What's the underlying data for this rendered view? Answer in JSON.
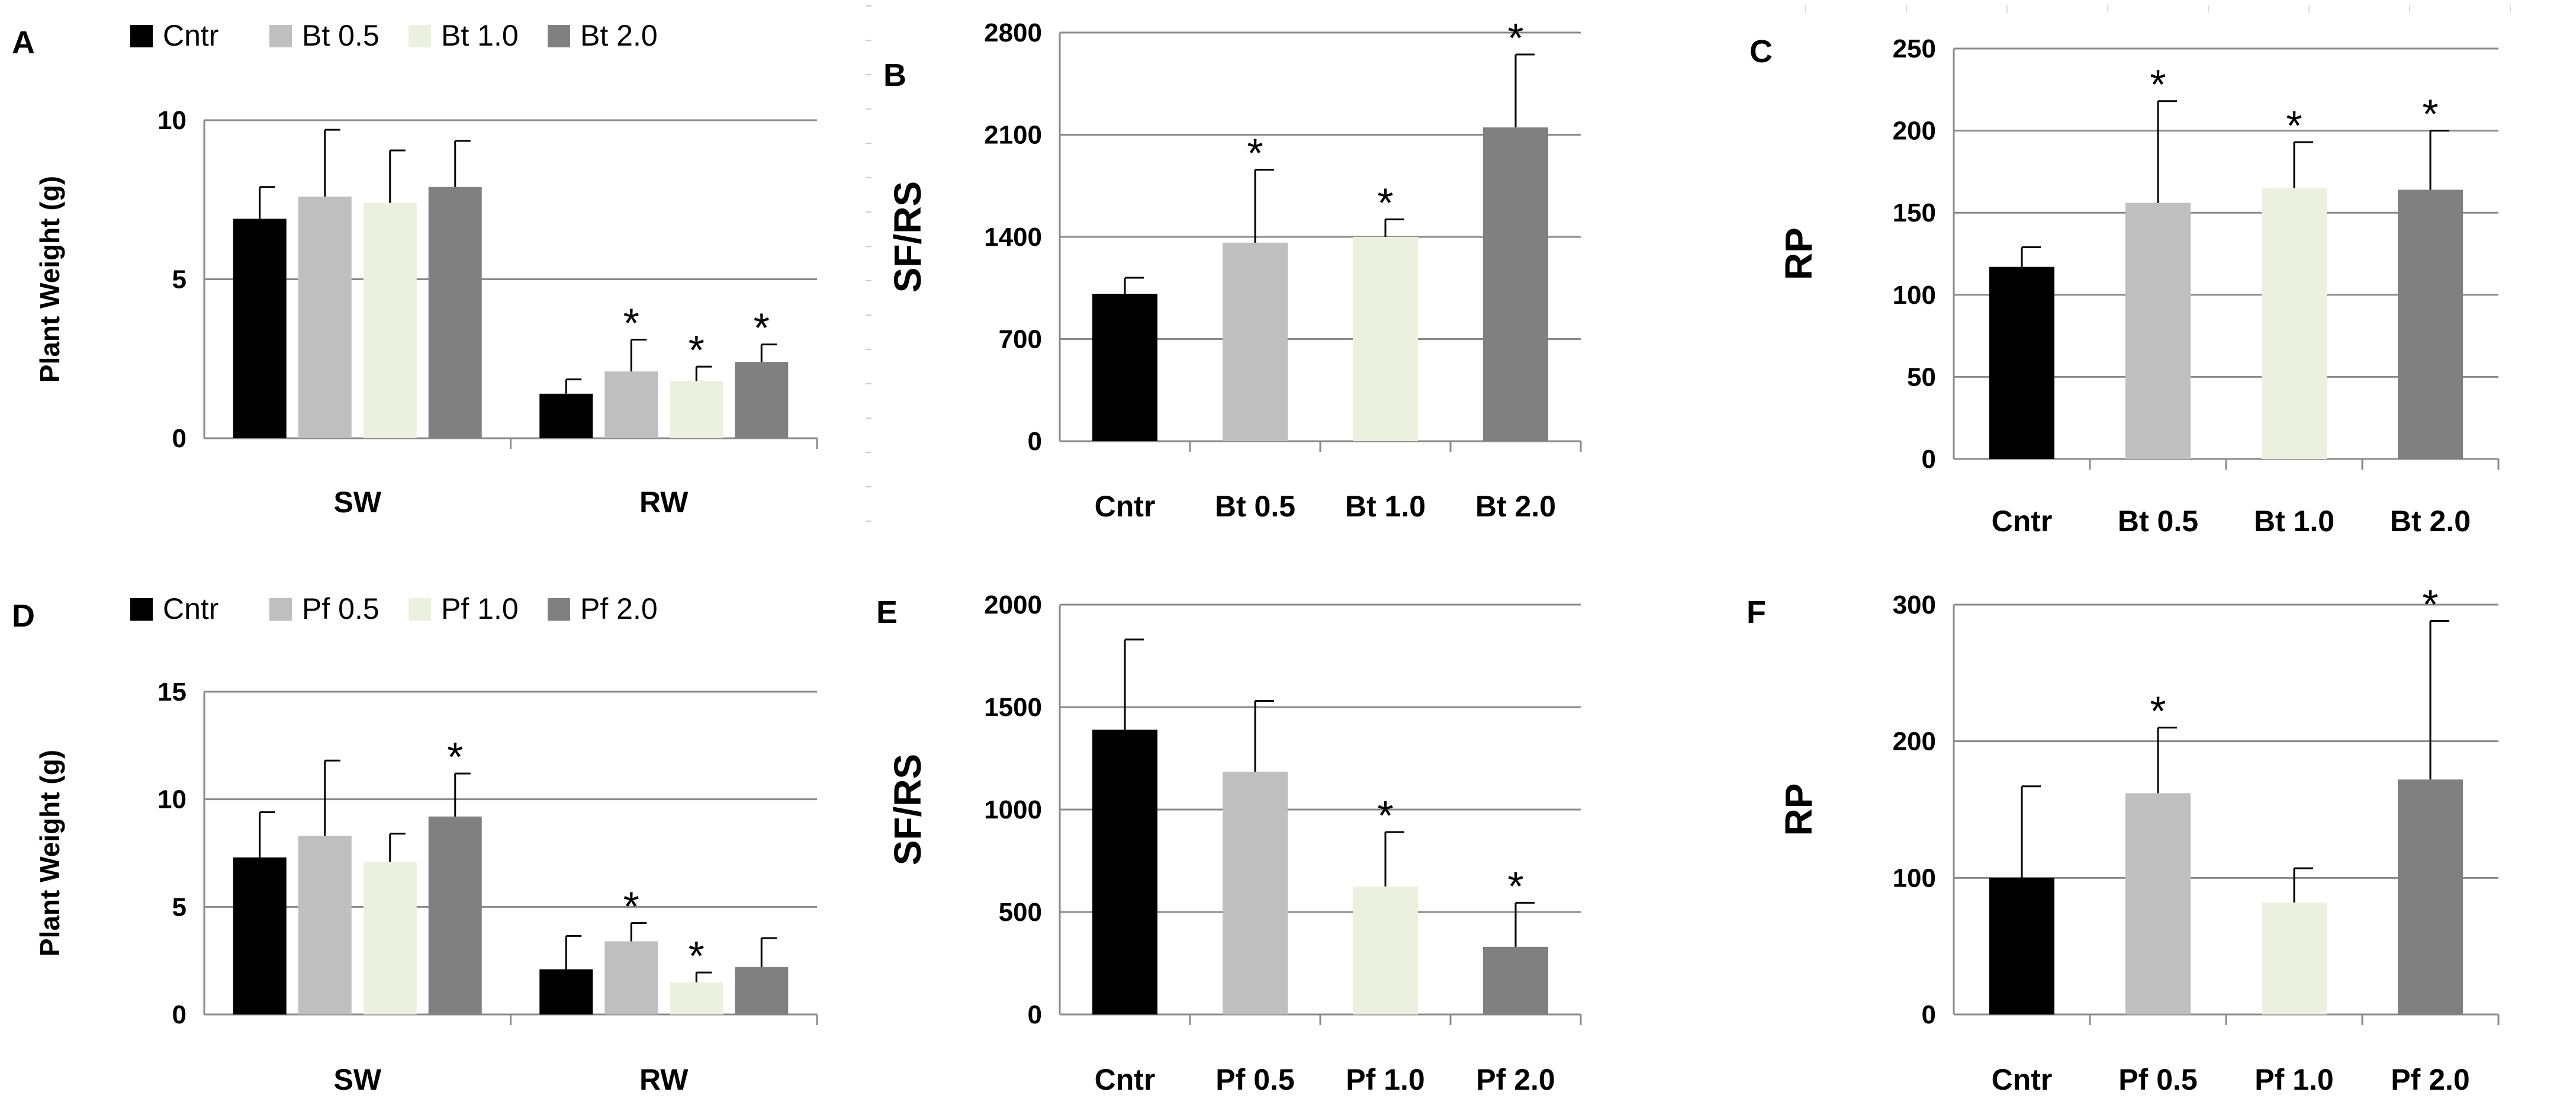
{
  "colors": {
    "Cntr": "#000000",
    "c05": "#bfbfbf",
    "c10": "#ebf1de",
    "c20": "#808080"
  },
  "chart_data": [
    {
      "id": "A",
      "type": "bar",
      "letter": "A",
      "ylabel": "Plant Weight (g)",
      "ylim": [
        0,
        10
      ],
      "yticks": [
        "0",
        "5",
        "10"
      ],
      "ytick_values": [
        0,
        5,
        10
      ],
      "categories": [
        "SW",
        "RW"
      ],
      "legend": [
        "Cntr",
        "Bt 0.5",
        "Bt 1.0",
        "Bt 2.0"
      ],
      "series": [
        {
          "name": "Cntr",
          "values": [
            6.9,
            1.4
          ],
          "errors": [
            1.0,
            0.45
          ],
          "significant": [
            false,
            false
          ]
        },
        {
          "name": "Bt 0.5",
          "values": [
            7.6,
            2.1
          ],
          "errors": [
            2.1,
            1.0
          ],
          "significant": [
            false,
            true
          ]
        },
        {
          "name": "Bt 1.0",
          "values": [
            7.4,
            1.8
          ],
          "errors": [
            1.65,
            0.45
          ],
          "significant": [
            false,
            true
          ]
        },
        {
          "name": "Bt 2.0",
          "values": [
            7.9,
            2.4
          ],
          "errors": [
            1.45,
            0.55
          ],
          "significant": [
            false,
            true
          ]
        }
      ]
    },
    {
      "id": "B",
      "type": "bar",
      "letter": "B",
      "ylabel": "SF/RS",
      "ylim": [
        0,
        2800
      ],
      "yticks": [
        "0",
        "700",
        "1400",
        "2100",
        "2800"
      ],
      "ytick_values": [
        0,
        700,
        1400,
        2100,
        2800
      ],
      "categories": [
        "Cntr",
        "Bt 0.5",
        "Bt 1.0",
        "Bt 2.0"
      ],
      "values": [
        1010,
        1360,
        1400,
        2150
      ],
      "errors": [
        110,
        500,
        120,
        500
      ],
      "significant": [
        false,
        true,
        true,
        true
      ]
    },
    {
      "id": "C",
      "type": "bar",
      "letter": "C",
      "ylabel": "RP",
      "ylim": [
        0,
        250
      ],
      "yticks": [
        "0",
        "50",
        "100",
        "150",
        "200",
        "250"
      ],
      "ytick_values": [
        0,
        50,
        100,
        150,
        200,
        250
      ],
      "categories": [
        "Cntr",
        "Bt 0.5",
        "Bt 1.0",
        "Bt 2.0"
      ],
      "values": [
        117,
        156,
        165,
        164
      ],
      "errors": [
        12,
        62,
        28,
        36
      ],
      "significant": [
        false,
        true,
        true,
        true
      ]
    },
    {
      "id": "D",
      "type": "bar",
      "letter": "D",
      "ylabel": "Plant Weight (g)",
      "ylim": [
        0,
        15
      ],
      "yticks": [
        "0",
        "5",
        "10",
        "15"
      ],
      "ytick_values": [
        0,
        5,
        10,
        15
      ],
      "categories": [
        "SW",
        "RW"
      ],
      "legend": [
        "Cntr",
        "Pf 0.5",
        "Pf 1.0",
        "Pf 2.0"
      ],
      "series": [
        {
          "name": "Cntr",
          "values": [
            7.3,
            2.1
          ],
          "errors": [
            2.1,
            1.55
          ],
          "significant": [
            false,
            false
          ]
        },
        {
          "name": "Pf 0.5",
          "values": [
            8.3,
            3.4
          ],
          "errors": [
            3.5,
            0.85
          ],
          "significant": [
            false,
            true
          ]
        },
        {
          "name": "Pf 1.0",
          "values": [
            7.1,
            1.5
          ],
          "errors": [
            1.3,
            0.45
          ],
          "significant": [
            false,
            true
          ]
        },
        {
          "name": "Pf 2.0",
          "values": [
            9.2,
            2.2
          ],
          "errors": [
            2.0,
            1.35
          ],
          "significant": [
            true,
            false
          ]
        }
      ]
    },
    {
      "id": "E",
      "type": "bar",
      "letter": "E",
      "ylabel": "SF/RS",
      "ylim": [
        0,
        2000
      ],
      "yticks": [
        "0",
        "500",
        "1000",
        "1500",
        "2000"
      ],
      "ytick_values": [
        0,
        500,
        1000,
        1500,
        2000
      ],
      "categories": [
        "Cntr",
        "Pf 0.5",
        "Pf 1.0",
        "Pf 2.0"
      ],
      "values": [
        1390,
        1185,
        625,
        330
      ],
      "errors": [
        440,
        345,
        265,
        215
      ],
      "significant": [
        false,
        false,
        true,
        true
      ]
    },
    {
      "id": "F",
      "type": "bar",
      "letter": "F",
      "ylabel": "RP",
      "ylim": [
        0,
        300
      ],
      "yticks": [
        "0",
        "100",
        "200",
        "300"
      ],
      "ytick_values": [
        0,
        100,
        200,
        300
      ],
      "categories": [
        "Cntr",
        "Pf 0.5",
        "Pf 1.0",
        "Pf 2.0"
      ],
      "values": [
        100,
        162,
        82,
        172
      ],
      "errors": [
        67,
        48,
        25,
        116
      ],
      "significant": [
        false,
        true,
        false,
        true
      ]
    }
  ]
}
